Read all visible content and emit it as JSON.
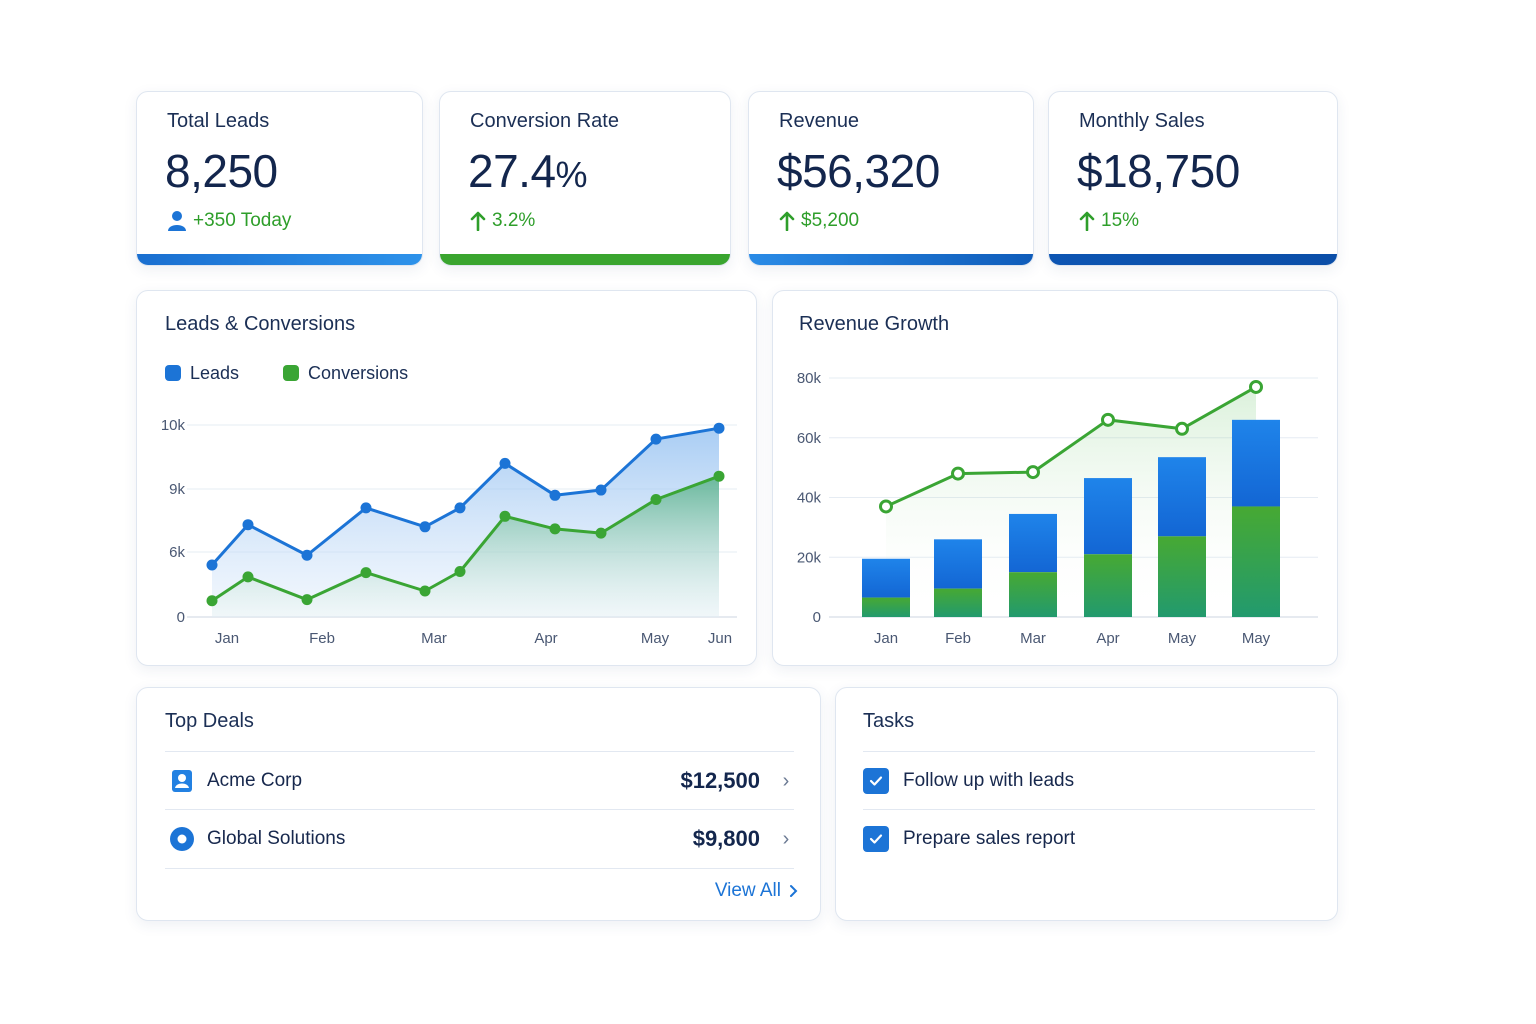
{
  "colors": {
    "blue": "#1c74d6",
    "green": "#3aa534",
    "navy": "#13264d",
    "blue_light": "#2c8ce8",
    "blue_dark": "#0d55b2"
  },
  "kpis": [
    {
      "title": "Total Leads",
      "value": "8,250",
      "delta": "+350 Today",
      "delta_icon": "user-icon"
    },
    {
      "title": "Conversion Rate",
      "value": "27.4",
      "value_suffix": "%",
      "delta": "3.2%",
      "delta_icon": "arrow-up-icon"
    },
    {
      "title": "Revenue",
      "value": "$56,320",
      "delta": "$5,200",
      "delta_icon": "arrow-up-icon"
    },
    {
      "title": "Monthly Sales",
      "value": "$18,750",
      "delta": "15%",
      "delta_icon": "arrow-up-icon"
    }
  ],
  "leads_panel": {
    "title": "Leads & Conversions",
    "legend": [
      "Leads",
      "Conversions"
    ]
  },
  "revenue_panel": {
    "title": "Revenue Growth"
  },
  "top_deals": {
    "title": "Top Deals",
    "items": [
      {
        "name": "Acme Corp",
        "amount": "$12,500",
        "icon": "contact-card-icon"
      },
      {
        "name": "Global Solutions",
        "amount": "$9,800",
        "icon": "circle-target-icon"
      }
    ],
    "view_all": "View All"
  },
  "tasks": {
    "title": "Tasks",
    "items": [
      {
        "label": "Follow up with leads",
        "checked": true
      },
      {
        "label": "Prepare sales report",
        "checked": true
      }
    ]
  },
  "chart_data": [
    {
      "type": "area",
      "title": "Leads & Conversions",
      "y_ticks": [
        "0",
        "6k",
        "9k",
        "10k"
      ],
      "y_tick_values": [
        0,
        6000,
        9000,
        10000
      ],
      "x_tick_labels": [
        "Jan",
        "Feb",
        "Mar",
        "Apr",
        "May",
        "Jun"
      ],
      "legend_position": "top-left",
      "grid": true,
      "series": [
        {
          "name": "Leads",
          "values": [
            4800,
            7300,
            5700,
            8100,
            7200,
            8100,
            9400,
            8700,
            8950,
            9780,
            9950
          ]
        },
        {
          "name": "Conversions",
          "values": [
            1500,
            3700,
            1600,
            4100,
            2400,
            4200,
            7700,
            7100,
            6900,
            8500,
            9200
          ]
        }
      ]
    },
    {
      "type": "bar",
      "title": "Revenue Growth",
      "categories": [
        "Jan",
        "Feb",
        "Mar",
        "Apr",
        "May",
        "May"
      ],
      "ylim": [
        0,
        80000
      ],
      "y_ticks": [
        "0",
        "20k",
        "40k",
        "60k",
        "80k"
      ],
      "y_tick_values": [
        0,
        20000,
        40000,
        60000,
        80000
      ],
      "grid": true,
      "stacked": true,
      "series": [
        {
          "name": "Green segment",
          "values": [
            6500,
            9500,
            15000,
            21000,
            27000,
            37000
          ]
        },
        {
          "name": "Blue segment",
          "values": [
            13000,
            16500,
            19500,
            25500,
            26500,
            29000
          ]
        },
        {
          "name": "Trend line",
          "type": "line",
          "values": [
            37000,
            48000,
            48500,
            66000,
            63000,
            77000
          ]
        }
      ]
    }
  ]
}
